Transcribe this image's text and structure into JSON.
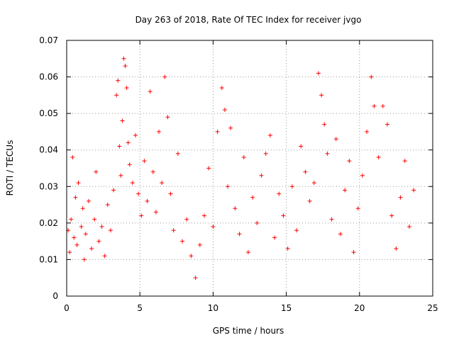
{
  "chart_data": {
    "type": "scatter",
    "title": "Day 263 of 2018, Rate Of TEC Index for receiver jvgo",
    "xlabel": "GPS time / hours",
    "ylabel": "ROTI / TECUs",
    "xlim": [
      0,
      25
    ],
    "ylim": [
      0,
      0.07
    ],
    "xticks": [
      "0",
      "5",
      "10",
      "15",
      "20",
      "25"
    ],
    "yticks": [
      "0",
      "0.01",
      "0.02",
      "0.03",
      "0.04",
      "0.05",
      "0.06",
      "0.07"
    ],
    "grid": true,
    "marker": "+",
    "color": "#ff0000",
    "series": [
      {
        "points": [
          [
            0.1,
            0.018
          ],
          [
            0.2,
            0.012
          ],
          [
            0.3,
            0.021
          ],
          [
            0.4,
            0.038
          ],
          [
            0.5,
            0.016
          ],
          [
            0.6,
            0.027
          ],
          [
            0.7,
            0.014
          ],
          [
            0.8,
            0.031
          ],
          [
            1.0,
            0.019
          ],
          [
            1.1,
            0.024
          ],
          [
            1.2,
            0.01
          ],
          [
            1.3,
            0.017
          ],
          [
            1.5,
            0.026
          ],
          [
            1.7,
            0.013
          ],
          [
            1.9,
            0.021
          ],
          [
            2.0,
            0.034
          ],
          [
            2.2,
            0.015
          ],
          [
            2.4,
            0.019
          ],
          [
            2.6,
            0.011
          ],
          [
            2.8,
            0.025
          ],
          [
            3.0,
            0.018
          ],
          [
            3.2,
            0.029
          ],
          [
            3.4,
            0.055
          ],
          [
            3.5,
            0.059
          ],
          [
            3.6,
            0.041
          ],
          [
            3.7,
            0.033
          ],
          [
            3.8,
            0.048
          ],
          [
            3.9,
            0.065
          ],
          [
            4.0,
            0.063
          ],
          [
            4.1,
            0.057
          ],
          [
            4.2,
            0.042
          ],
          [
            4.3,
            0.036
          ],
          [
            4.5,
            0.031
          ],
          [
            4.7,
            0.044
          ],
          [
            4.9,
            0.028
          ],
          [
            5.1,
            0.022
          ],
          [
            5.3,
            0.037
          ],
          [
            5.5,
            0.026
          ],
          [
            5.7,
            0.056
          ],
          [
            5.9,
            0.034
          ],
          [
            6.1,
            0.023
          ],
          [
            6.3,
            0.045
          ],
          [
            6.5,
            0.031
          ],
          [
            6.7,
            0.06
          ],
          [
            6.9,
            0.049
          ],
          [
            7.1,
            0.028
          ],
          [
            7.3,
            0.018
          ],
          [
            7.6,
            0.039
          ],
          [
            7.9,
            0.015
          ],
          [
            8.2,
            0.021
          ],
          [
            8.5,
            0.011
          ],
          [
            8.8,
            0.005
          ],
          [
            9.1,
            0.014
          ],
          [
            9.4,
            0.022
          ],
          [
            9.7,
            0.035
          ],
          [
            10.0,
            0.019
          ],
          [
            10.3,
            0.045
          ],
          [
            10.6,
            0.057
          ],
          [
            10.8,
            0.051
          ],
          [
            11.0,
            0.03
          ],
          [
            11.2,
            0.046
          ],
          [
            11.5,
            0.024
          ],
          [
            11.8,
            0.017
          ],
          [
            12.1,
            0.038
          ],
          [
            12.4,
            0.012
          ],
          [
            12.7,
            0.027
          ],
          [
            13.0,
            0.02
          ],
          [
            13.3,
            0.033
          ],
          [
            13.6,
            0.039
          ],
          [
            13.9,
            0.044
          ],
          [
            14.2,
            0.016
          ],
          [
            14.5,
            0.028
          ],
          [
            14.8,
            0.022
          ],
          [
            15.1,
            0.013
          ],
          [
            15.4,
            0.03
          ],
          [
            15.7,
            0.018
          ],
          [
            16.0,
            0.041
          ],
          [
            16.3,
            0.034
          ],
          [
            16.6,
            0.026
          ],
          [
            16.9,
            0.031
          ],
          [
            17.2,
            0.061
          ],
          [
            17.4,
            0.055
          ],
          [
            17.6,
            0.047
          ],
          [
            17.8,
            0.039
          ],
          [
            18.1,
            0.021
          ],
          [
            18.4,
            0.043
          ],
          [
            18.7,
            0.017
          ],
          [
            19.0,
            0.029
          ],
          [
            19.3,
            0.037
          ],
          [
            19.6,
            0.012
          ],
          [
            19.9,
            0.024
          ],
          [
            20.2,
            0.033
          ],
          [
            20.5,
            0.045
          ],
          [
            20.8,
            0.06
          ],
          [
            21.0,
            0.052
          ],
          [
            21.3,
            0.038
          ],
          [
            21.6,
            0.052
          ],
          [
            21.9,
            0.047
          ],
          [
            22.2,
            0.022
          ],
          [
            22.5,
            0.013
          ],
          [
            22.8,
            0.027
          ],
          [
            23.1,
            0.037
          ],
          [
            23.4,
            0.019
          ],
          [
            23.7,
            0.029
          ]
        ]
      }
    ]
  }
}
